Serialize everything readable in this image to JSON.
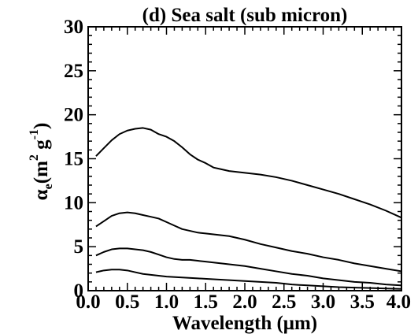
{
  "chart_data": {
    "type": "line",
    "title": "(d) Sea salt (sub micron)",
    "xlabel": "Wavelength (μm)",
    "ylabel": {
      "symbol": "α",
      "subscript": "e",
      "unit_open": "(m",
      "unit_sup1": "2",
      "unit_mid": " g",
      "unit_sup2": "-1",
      "unit_close": ")"
    },
    "xlim": [
      0.0,
      4.0
    ],
    "ylim": [
      0,
      30
    ],
    "x_ticks": [
      "0.0",
      "0.5",
      "1.0",
      "1.5",
      "2.0",
      "2.5",
      "3.0",
      "3.5",
      "4.0"
    ],
    "y_ticks": [
      "0",
      "5",
      "10",
      "15",
      "20",
      "25",
      "30"
    ],
    "grid": false,
    "legend": "none",
    "line_color": "#000000",
    "series": [
      {
        "x": [
          0.1,
          0.2,
          0.3,
          0.4,
          0.5,
          0.6,
          0.7,
          0.8,
          0.9,
          1.0,
          1.1,
          1.2,
          1.3,
          1.4,
          1.5,
          1.6,
          1.7,
          1.8,
          1.9,
          2.0,
          2.2,
          2.4,
          2.6,
          2.8,
          3.0,
          3.2,
          3.4,
          3.6,
          3.8,
          4.0
        ],
        "values": [
          15.3,
          16.2,
          17.1,
          17.8,
          18.2,
          18.4,
          18.5,
          18.3,
          17.8,
          17.5,
          17.0,
          16.3,
          15.5,
          14.9,
          14.5,
          14.0,
          13.8,
          13.6,
          13.5,
          13.4,
          13.2,
          12.9,
          12.5,
          12.0,
          11.5,
          11.0,
          10.4,
          9.8,
          9.1,
          8.3
        ]
      },
      {
        "x": [
          0.1,
          0.2,
          0.3,
          0.4,
          0.5,
          0.6,
          0.7,
          0.8,
          0.9,
          1.0,
          1.1,
          1.2,
          1.3,
          1.4,
          1.5,
          1.6,
          1.7,
          1.8,
          1.9,
          2.0,
          2.2,
          2.4,
          2.6,
          2.8,
          3.0,
          3.2,
          3.4,
          3.6,
          3.8,
          4.0
        ],
        "values": [
          7.3,
          7.9,
          8.5,
          8.8,
          8.9,
          8.8,
          8.6,
          8.4,
          8.2,
          7.8,
          7.4,
          7.0,
          6.8,
          6.6,
          6.5,
          6.4,
          6.3,
          6.2,
          6.0,
          5.8,
          5.3,
          4.9,
          4.5,
          4.2,
          3.8,
          3.5,
          3.1,
          2.8,
          2.5,
          2.2
        ]
      },
      {
        "x": [
          0.1,
          0.2,
          0.3,
          0.4,
          0.5,
          0.6,
          0.7,
          0.8,
          0.9,
          1.0,
          1.1,
          1.2,
          1.3,
          1.4,
          1.5,
          1.6,
          1.7,
          1.8,
          1.9,
          2.0,
          2.2,
          2.4,
          2.6,
          2.8,
          3.0,
          3.2,
          3.4,
          3.6,
          3.8,
          4.0
        ],
        "values": [
          4.0,
          4.4,
          4.7,
          4.8,
          4.8,
          4.7,
          4.6,
          4.4,
          4.1,
          3.8,
          3.6,
          3.5,
          3.5,
          3.4,
          3.3,
          3.2,
          3.1,
          3.0,
          2.9,
          2.8,
          2.5,
          2.2,
          1.9,
          1.7,
          1.4,
          1.2,
          1.0,
          0.9,
          0.7,
          0.6
        ]
      },
      {
        "x": [
          0.1,
          0.2,
          0.3,
          0.4,
          0.5,
          0.6,
          0.7,
          0.8,
          0.9,
          1.0,
          1.2,
          1.4,
          1.6,
          1.8,
          2.0,
          2.2,
          2.4,
          2.6,
          2.8,
          3.0,
          3.2,
          3.4,
          3.6,
          3.8,
          4.0
        ],
        "values": [
          2.1,
          2.3,
          2.4,
          2.4,
          2.3,
          2.1,
          1.9,
          1.8,
          1.7,
          1.6,
          1.5,
          1.4,
          1.3,
          1.2,
          1.1,
          1.0,
          0.9,
          0.7,
          0.6,
          0.5,
          0.4,
          0.35,
          0.3,
          0.25,
          0.2
        ]
      }
    ]
  }
}
